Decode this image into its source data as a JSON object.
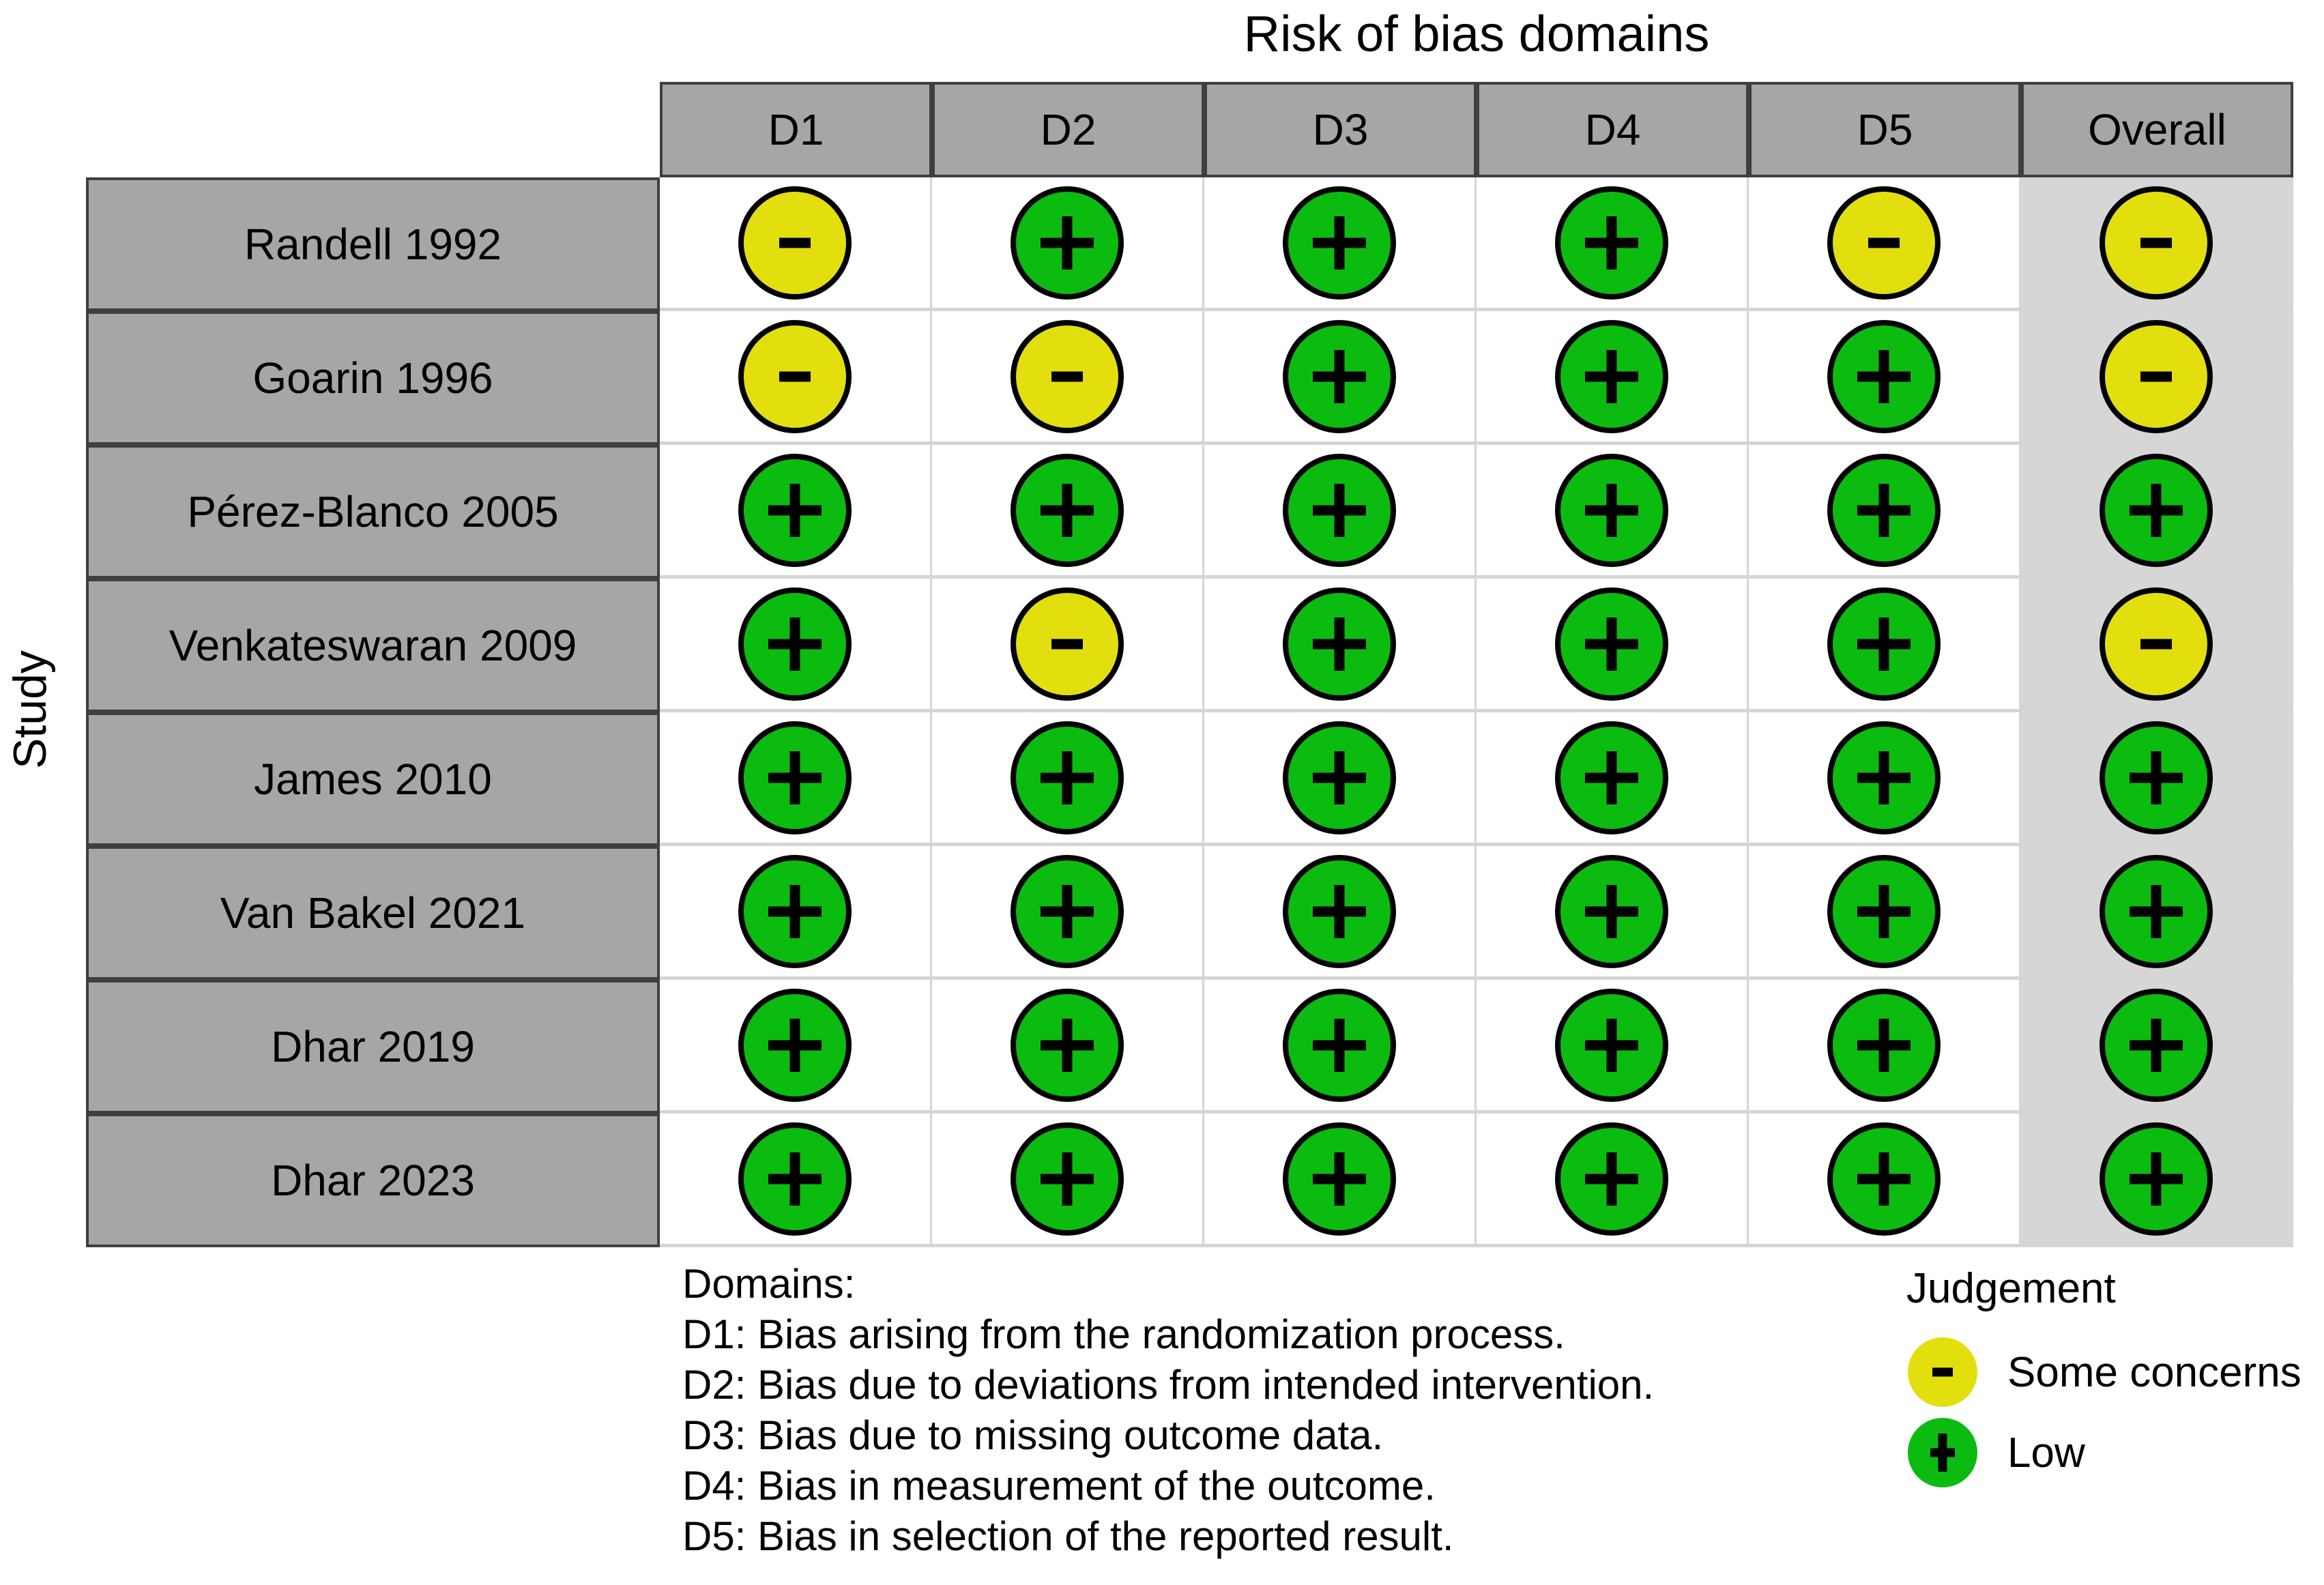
{
  "chart_data": {
    "type": "heatmap",
    "title": "Risk of bias domains",
    "ylabel": "Study",
    "x_categories": [
      "D1",
      "D2",
      "D3",
      "D4",
      "D5",
      "Overall"
    ],
    "y_categories": [
      "Randell 1992",
      "Goarin 1996",
      "Pérez-Blanco 2005",
      "Venkateswaran 2009",
      "James 2010",
      "Van Bakel 2021",
      "Dhar 2019",
      "Dhar 2023"
    ],
    "values": [
      [
        "some_concerns",
        "low",
        "low",
        "low",
        "some_concerns",
        "some_concerns"
      ],
      [
        "some_concerns",
        "some_concerns",
        "low",
        "low",
        "low",
        "some_concerns"
      ],
      [
        "low",
        "low",
        "low",
        "low",
        "low",
        "low"
      ],
      [
        "low",
        "some_concerns",
        "low",
        "low",
        "low",
        "some_concerns"
      ],
      [
        "low",
        "low",
        "low",
        "low",
        "low",
        "low"
      ],
      [
        "low",
        "low",
        "low",
        "low",
        "low",
        "low"
      ],
      [
        "low",
        "low",
        "low",
        "low",
        "low",
        "low"
      ],
      [
        "low",
        "low",
        "low",
        "low",
        "low",
        "low"
      ]
    ],
    "legend_position": "bottom-right",
    "grid": true
  },
  "legend": {
    "title": "Judgement",
    "items": [
      {
        "key": "some_concerns",
        "symbol": "-",
        "label": "Some concerns"
      },
      {
        "key": "low",
        "symbol": "+",
        "label": "Low"
      }
    ]
  },
  "footnotes": {
    "heading": "Domains:",
    "lines": [
      "D1: Bias arising from the randomization process.",
      "D2: Bias due to deviations from intended intervention.",
      "D3: Bias due to missing outcome data.",
      "D4: Bias in measurement of the outcome.",
      "D5: Bias in selection of the reported result."
    ]
  },
  "colors": {
    "low": "#0CBB10",
    "some_concerns": "#E3DF0F",
    "header_fill": "#A6A6A6",
    "overall_fill": "#D6D6D6",
    "dark_border": "#3F3F3F",
    "grid_line": "#D5D5D5",
    "symbol": "#000000",
    "circle_outline": "#000000",
    "text": "#000000"
  }
}
